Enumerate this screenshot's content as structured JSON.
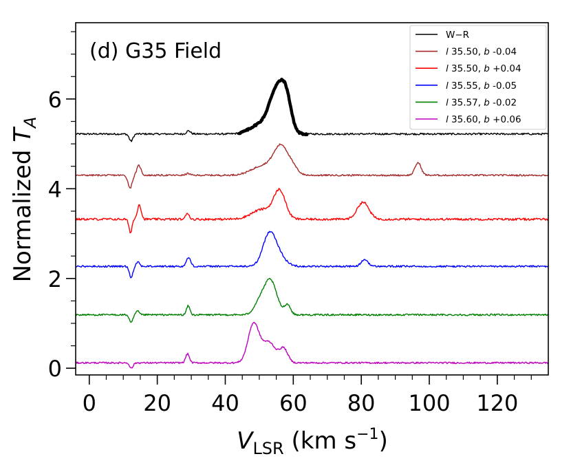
{
  "chart_data": {
    "type": "line",
    "panel_label": "(d) G35 Field",
    "title": "",
    "xlabel": {
      "main": "V",
      "sub": "LSR",
      "unit": " (km s",
      "exp": "−1",
      "close": ")"
    },
    "ylabel": {
      "main": "Normalized ",
      "var": "T",
      "sub": "A"
    },
    "xlim": [
      -4,
      135
    ],
    "ylim": [
      -0.15,
      7.7
    ],
    "xticks": [
      0,
      20,
      40,
      60,
      80,
      100,
      120
    ],
    "yticks": [
      0,
      2,
      4,
      6
    ],
    "legend_position": "top-right",
    "series": [
      {
        "name": "W−R",
        "color": "#000000",
        "offset": 5.22,
        "noise": 0.02,
        "features": [
          {
            "x": 12.3,
            "amp": -0.16,
            "w": 0.55
          },
          {
            "x": 29.2,
            "amp": 0.07,
            "w": 0.6
          }
        ],
        "bold_segment": {
          "x_range": [
            44,
            64
          ],
          "features": [
            {
              "x": 50.5,
              "amp": 0.22,
              "w": 3.0
            },
            {
              "x": 54.5,
              "amp": 0.68,
              "w": 1.9
            },
            {
              "x": 58.0,
              "amp": 0.72,
              "w": 1.5
            },
            {
              "x": 56.2,
              "amp": 0.35,
              "w": 1.6
            }
          ]
        }
      },
      {
        "name": "l 35.50, b -0.04",
        "label_l": "l",
        "label_rest": " 35.50, ",
        "label_b": "b",
        "label_val": " -0.04",
        "color": "#a52a2a",
        "offset": 4.3,
        "noise": 0.018,
        "features": [
          {
            "x": 12.0,
            "amp": -0.28,
            "w": 0.6
          },
          {
            "x": 14.6,
            "amp": 0.22,
            "w": 0.6
          },
          {
            "x": 29.0,
            "amp": 0.04,
            "w": 0.6
          },
          {
            "x": 51.5,
            "amp": 0.22,
            "w": 3.5
          },
          {
            "x": 56.5,
            "amp": 0.6,
            "w": 2.1
          },
          {
            "x": 60.0,
            "amp": 0.12,
            "w": 1.5
          },
          {
            "x": 96.7,
            "amp": 0.28,
            "w": 0.9
          }
        ]
      },
      {
        "name": "l 35.50, b +0.04",
        "label_l": "l",
        "label_rest": " 35.50, ",
        "label_b": "b",
        "label_val": " +0.04",
        "color": "#ff0000",
        "offset": 3.32,
        "noise": 0.025,
        "features": [
          {
            "x": 12.1,
            "amp": -0.3,
            "w": 0.45
          },
          {
            "x": 14.7,
            "amp": 0.33,
            "w": 0.55
          },
          {
            "x": 28.9,
            "amp": 0.14,
            "w": 0.5
          },
          {
            "x": 51.0,
            "amp": 0.22,
            "w": 3.2
          },
          {
            "x": 56.0,
            "amp": 0.6,
            "w": 1.7
          },
          {
            "x": 80.5,
            "amp": 0.38,
            "w": 1.7
          }
        ]
      },
      {
        "name": "l 35.55, b -0.05",
        "label_l": "l",
        "label_rest": " 35.55, ",
        "label_b": "b",
        "label_val": " -0.05",
        "color": "#0000ff",
        "offset": 2.27,
        "noise": 0.02,
        "features": [
          {
            "x": 12.3,
            "amp": -0.25,
            "w": 0.5
          },
          {
            "x": 14.3,
            "amp": 0.1,
            "w": 0.5
          },
          {
            "x": 29.2,
            "amp": 0.2,
            "w": 0.6
          },
          {
            "x": 53.0,
            "amp": 0.72,
            "w": 1.9
          },
          {
            "x": 56.0,
            "amp": 0.18,
            "w": 2.0
          },
          {
            "x": 81.0,
            "amp": 0.15,
            "w": 1.0
          }
        ]
      },
      {
        "name": "l 35.57, b -0.02",
        "label_l": "l",
        "label_rest": " 35.57, ",
        "label_b": "b",
        "label_val": " -0.02",
        "color": "#008000",
        "offset": 1.19,
        "noise": 0.02,
        "features": [
          {
            "x": 12.3,
            "amp": -0.18,
            "w": 0.5
          },
          {
            "x": 14.2,
            "amp": 0.08,
            "w": 0.5
          },
          {
            "x": 29.1,
            "amp": 0.2,
            "w": 0.5
          },
          {
            "x": 49.8,
            "amp": 0.22,
            "w": 1.5
          },
          {
            "x": 53.2,
            "amp": 0.78,
            "w": 1.9
          },
          {
            "x": 58.3,
            "amp": 0.22,
            "w": 0.9
          }
        ]
      },
      {
        "name": "l 35.60, b +0.06",
        "label_l": "l",
        "label_rest": " 35.60, ",
        "label_b": "b",
        "label_val": " +0.06",
        "color": "#bf00bf",
        "offset": 0.12,
        "noise": 0.018,
        "features": [
          {
            "x": 12.4,
            "amp": -0.12,
            "w": 0.5
          },
          {
            "x": 28.9,
            "amp": 0.2,
            "w": 0.55
          },
          {
            "x": 48.3,
            "amp": 0.86,
            "w": 1.6
          },
          {
            "x": 52.8,
            "amp": 0.46,
            "w": 2.0
          },
          {
            "x": 57.2,
            "amp": 0.3,
            "w": 1.2
          }
        ]
      }
    ]
  }
}
